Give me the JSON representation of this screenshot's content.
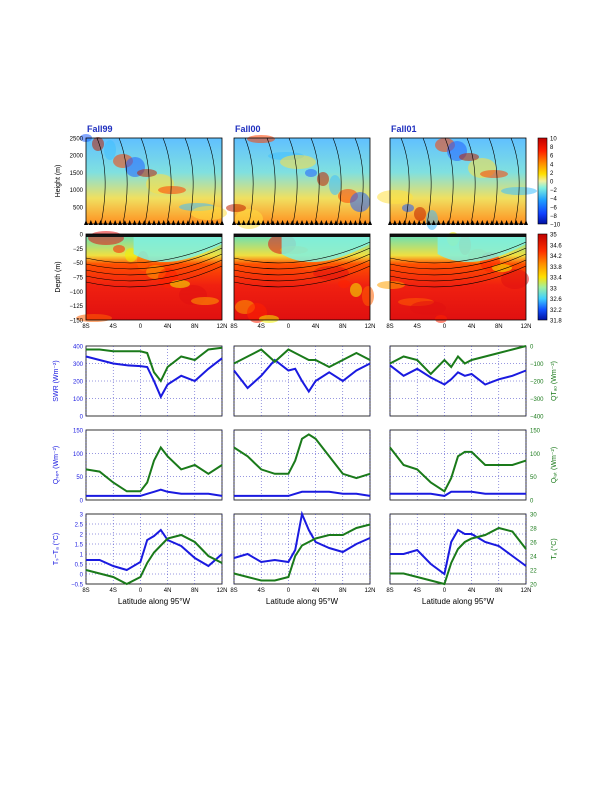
{
  "columns": [
    "Fall99",
    "Fall00",
    "Fall01"
  ],
  "xaxis": {
    "ticks": [
      "8S",
      "4S",
      "0",
      "4N",
      "8N",
      "12N"
    ],
    "tick_values": [
      -8,
      -4,
      0,
      4,
      8,
      12
    ],
    "label_prefix": "Latitude along 95",
    "label_suffix": "W",
    "range": [
      -8,
      12
    ]
  },
  "colors": {
    "blue": "#1a1ae0",
    "green": "#1a7a1a",
    "grid": "#3030c0",
    "title": "#1f2fbf"
  },
  "chart_data": [
    {
      "type": "heatmap",
      "row": "height",
      "ylabel": "Height (m)",
      "ylim": [
        0,
        2500
      ],
      "yticks": [
        "500",
        "1000",
        "1500",
        "2000",
        "2500"
      ],
      "colorbar": {
        "ticks": [
          "10",
          "8",
          "6",
          "4",
          "2",
          "0",
          "−2",
          "−4",
          "−6",
          "−8",
          "−10"
        ],
        "range": [
          -10,
          10
        ]
      }
    },
    {
      "type": "heatmap",
      "row": "depth",
      "ylabel": "Depth (m)",
      "ylim": [
        -150,
        0
      ],
      "yticks": [
        "0",
        "−25",
        "−50",
        "−75",
        "−100",
        "−125",
        "−150"
      ],
      "colorbar": {
        "ticks": [
          "35",
          "34.6",
          "34.2",
          "33.8",
          "33.4",
          "33",
          "32.6",
          "32.2",
          "31.8"
        ],
        "range": [
          31.8,
          35
        ]
      }
    },
    {
      "type": "line",
      "row": "swr",
      "ylabel_left": "SWR (Wm⁻²)",
      "ylabel_right": "QTₐₒ (Wm⁻²)",
      "yticks_left": [
        "0",
        "100",
        "200",
        "300",
        "400"
      ],
      "yticks_right": [
        "−400",
        "−300",
        "−200",
        "−100",
        "0"
      ],
      "ylim_left": [
        0,
        400
      ],
      "ylim_right": [
        -400,
        0
      ],
      "x": [
        -8,
        -6,
        -4,
        -2,
        0,
        1,
        2,
        3,
        4,
        6,
        8,
        10,
        12
      ],
      "series": [
        {
          "axis": "left",
          "panels": [
            [
              340,
              320,
              300,
              290,
              285,
              280,
              200,
              110,
              180,
              230,
              200,
              270,
              330
            ],
            [
              260,
              160,
              230,
              320,
              260,
              270,
              200,
              140,
              200,
              250,
              200,
              260,
              300
            ],
            [
              290,
              230,
              270,
              220,
              180,
              210,
              250,
              230,
              240,
              180,
              210,
              230,
              260
            ]
          ]
        },
        {
          "axis": "right",
          "panels": [
            [
              -20,
              -20,
              -30,
              -30,
              -30,
              -40,
              -150,
              -200,
              -120,
              -60,
              -80,
              -20,
              -10
            ],
            [
              -100,
              -60,
              -20,
              -90,
              -20,
              -40,
              -60,
              -80,
              -80,
              -120,
              -80,
              -40,
              -80
            ],
            [
              -100,
              -60,
              -80,
              -160,
              -80,
              -120,
              -60,
              -100,
              -80,
              -60,
              -40,
              -20,
              0
            ]
          ]
        }
      ]
    },
    {
      "type": "line",
      "row": "qsen",
      "ylabel_left": "Qₛₑₙ (Wm⁻²)",
      "ylabel_right": "Qₗₐₜ (Wm⁻²)",
      "yticks_left": [
        "0",
        "50",
        "100",
        "150"
      ],
      "yticks_right": [
        "0",
        "50",
        "100",
        "150"
      ],
      "ylim_left": [
        -10,
        160
      ],
      "ylim_right": [
        0,
        160
      ],
      "x": [
        -8,
        -6,
        -4,
        -2,
        0,
        1,
        2,
        3,
        4,
        6,
        8,
        10,
        12
      ],
      "series": [
        {
          "axis": "left",
          "panels": [
            [
              0,
              0,
              0,
              0,
              0,
              5,
              10,
              15,
              10,
              5,
              5,
              5,
              0
            ],
            [
              0,
              0,
              0,
              0,
              0,
              5,
              10,
              10,
              10,
              10,
              5,
              5,
              0
            ],
            [
              5,
              5,
              5,
              5,
              0,
              10,
              10,
              10,
              10,
              5,
              5,
              5,
              5
            ]
          ]
        },
        {
          "axis": "right",
          "panels": [
            [
              70,
              65,
              40,
              20,
              20,
              40,
              90,
              120,
              100,
              70,
              80,
              60,
              80
            ],
            [
              120,
              100,
              70,
              60,
              60,
              90,
              140,
              150,
              140,
              100,
              60,
              50,
              60
            ],
            [
              120,
              80,
              70,
              40,
              20,
              50,
              100,
              110,
              110,
              80,
              80,
              80,
              90
            ]
          ]
        }
      ]
    },
    {
      "type": "line",
      "row": "dt",
      "ylabel_left": "Tₛ−Tₐ (°C)",
      "ylabel_right": "Tₐ (°C)",
      "yticks_left": [
        "−0.5",
        "0",
        "0.5",
        "1",
        "1.5",
        "2",
        "2.5",
        "3"
      ],
      "yticks_right": [
        "20",
        "22",
        "24",
        "26",
        "28",
        "30"
      ],
      "ylim_left": [
        -0.5,
        3
      ],
      "ylim_right": [
        20,
        30
      ],
      "x": [
        -8,
        -6,
        -4,
        -2,
        0,
        1,
        2,
        3,
        4,
        6,
        8,
        10,
        12
      ],
      "series": [
        {
          "axis": "left",
          "panels": [
            [
              0.7,
              0.7,
              0.4,
              0.2,
              0.6,
              1.7,
              1.9,
              2.2,
              1.7,
              1.4,
              0.8,
              0.4,
              1.0
            ],
            [
              0.8,
              1.0,
              0.6,
              0.7,
              0.6,
              1.2,
              3.0,
              2.2,
              1.6,
              1.3,
              1.1,
              1.5,
              1.8
            ],
            [
              1.0,
              1.0,
              1.2,
              0.5,
              0.0,
              1.6,
              2.2,
              2.0,
              2.0,
              1.6,
              1.4,
              0.9,
              0.4
            ]
          ]
        },
        {
          "axis": "right",
          "panels": [
            [
              22,
              21.5,
              21,
              20,
              21,
              23,
              24.5,
              25.5,
              26.5,
              27,
              26,
              24,
              23
            ],
            [
              21.5,
              21,
              20.5,
              20.5,
              21,
              24,
              25.5,
              26,
              26.5,
              27,
              27,
              28,
              28.5
            ],
            [
              21.5,
              21.5,
              21,
              20.5,
              20,
              23,
              25,
              26,
              26.5,
              27,
              28,
              27.5,
              25
            ]
          ]
        }
      ]
    }
  ]
}
